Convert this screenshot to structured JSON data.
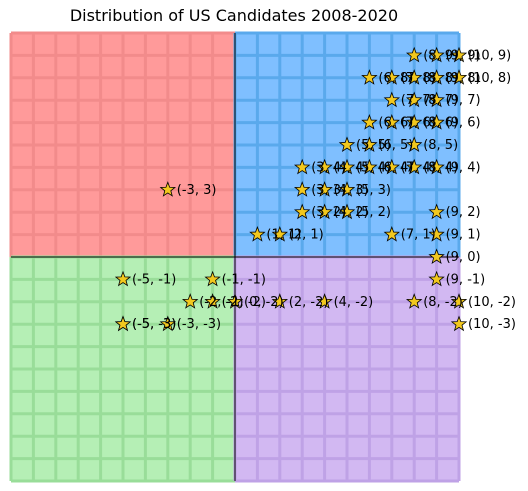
{
  "chart_data": {
    "type": "scatter",
    "title": "Distribution of US Candidates 2008-2020",
    "xlim": [
      -10,
      10
    ],
    "ylim": [
      -10,
      10
    ],
    "grid": true,
    "axes_visible": false,
    "quadrant_colors": {
      "top_left": "#ff9a9a",
      "top_right": "#7fbfff",
      "bottom_left": "#b5efb5",
      "bottom_right": "#d2b8f2"
    },
    "quadrant_grid_colors": {
      "top_left": "#f28b8b",
      "top_right": "#5aa9ec",
      "bottom_left": "#99dd99",
      "bottom_right": "#bfa2e6"
    },
    "marker": "star",
    "marker_color": "#f2c81e",
    "points": [
      {
        "x": -3,
        "y": 3,
        "label": "(-3, 3)"
      },
      {
        "x": -5,
        "y": -1,
        "label": "(-5, -1)"
      },
      {
        "x": -1,
        "y": -1,
        "label": "(-1, -1)"
      },
      {
        "x": -2,
        "y": -2,
        "label": "(-2, -2)"
      },
      {
        "x": -1,
        "y": -2,
        "label": "(-1, -2)"
      },
      {
        "x": 0,
        "y": -2,
        "label": "(0, -2)"
      },
      {
        "x": 2,
        "y": -2,
        "label": "(2, -2)"
      },
      {
        "x": 4,
        "y": -2,
        "label": "(4, -2)"
      },
      {
        "x": -5,
        "y": -3,
        "label": "(-5, -3)"
      },
      {
        "x": -5,
        "y": -3,
        "label": "(-5, -3)"
      },
      {
        "x": -3,
        "y": -3,
        "label": "(-3, -3)"
      },
      {
        "x": 8,
        "y": -2,
        "label": "(8, -2)"
      },
      {
        "x": 10,
        "y": -2,
        "label": "(10, -2)"
      },
      {
        "x": 10,
        "y": -3,
        "label": "(10, -3)"
      },
      {
        "x": 9,
        "y": -1,
        "label": "(9, -1)"
      },
      {
        "x": 9,
        "y": 0,
        "label": "(9, 0)"
      },
      {
        "x": 1,
        "y": 1,
        "label": "(1, 1)"
      },
      {
        "x": 2,
        "y": 1,
        "label": "(2, 1)"
      },
      {
        "x": 7,
        "y": 1,
        "label": "(7, 1)"
      },
      {
        "x": 9,
        "y": 1,
        "label": "(9, 1)"
      },
      {
        "x": 3,
        "y": 2,
        "label": "(3, 2)"
      },
      {
        "x": 4,
        "y": 2,
        "label": "(4, 2)"
      },
      {
        "x": 5,
        "y": 2,
        "label": "(5, 2)"
      },
      {
        "x": 9,
        "y": 2,
        "label": "(9, 2)"
      },
      {
        "x": 3,
        "y": 3,
        "label": "(3, 3)"
      },
      {
        "x": 4,
        "y": 3,
        "label": "(4, 3)"
      },
      {
        "x": 5,
        "y": 3,
        "label": "(5, 3)"
      },
      {
        "x": 3,
        "y": 4,
        "label": "(3, 4)"
      },
      {
        "x": 4,
        "y": 4,
        "label": "(4, 4)"
      },
      {
        "x": 5,
        "y": 4,
        "label": "(5, 4)"
      },
      {
        "x": 6,
        "y": 4,
        "label": "(6, 4)"
      },
      {
        "x": 7,
        "y": 4,
        "label": "(7, 4)"
      },
      {
        "x": 8,
        "y": 4,
        "label": "(8, 4)"
      },
      {
        "x": 9,
        "y": 4,
        "label": "(9, 4)"
      },
      {
        "x": 5,
        "y": 5,
        "label": "(5, 5)"
      },
      {
        "x": 6,
        "y": 5,
        "label": "(6, 5)"
      },
      {
        "x": 8,
        "y": 5,
        "label": "(8, 5)"
      },
      {
        "x": 6,
        "y": 6,
        "label": "(6, 6)"
      },
      {
        "x": 7,
        "y": 6,
        "label": "(7, 6)"
      },
      {
        "x": 8,
        "y": 6,
        "label": "(8, 6)"
      },
      {
        "x": 9,
        "y": 6,
        "label": "(9, 6)"
      },
      {
        "x": 7,
        "y": 7,
        "label": "(7, 7)"
      },
      {
        "x": 8,
        "y": 7,
        "label": "(8, 7)"
      },
      {
        "x": 9,
        "y": 7,
        "label": "(9, 7)"
      },
      {
        "x": 6,
        "y": 8,
        "label": "(6, 8)"
      },
      {
        "x": 7,
        "y": 8,
        "label": "(7, 8)"
      },
      {
        "x": 8,
        "y": 8,
        "label": "(8, 8)"
      },
      {
        "x": 9,
        "y": 8,
        "label": "(9, 8)"
      },
      {
        "x": 10,
        "y": 8,
        "label": "(10, 8)"
      },
      {
        "x": 8,
        "y": 9,
        "label": "(8, 9)"
      },
      {
        "x": 9,
        "y": 9,
        "label": "(9, 9)"
      },
      {
        "x": 10,
        "y": 9,
        "label": "(10, 9)"
      }
    ]
  }
}
